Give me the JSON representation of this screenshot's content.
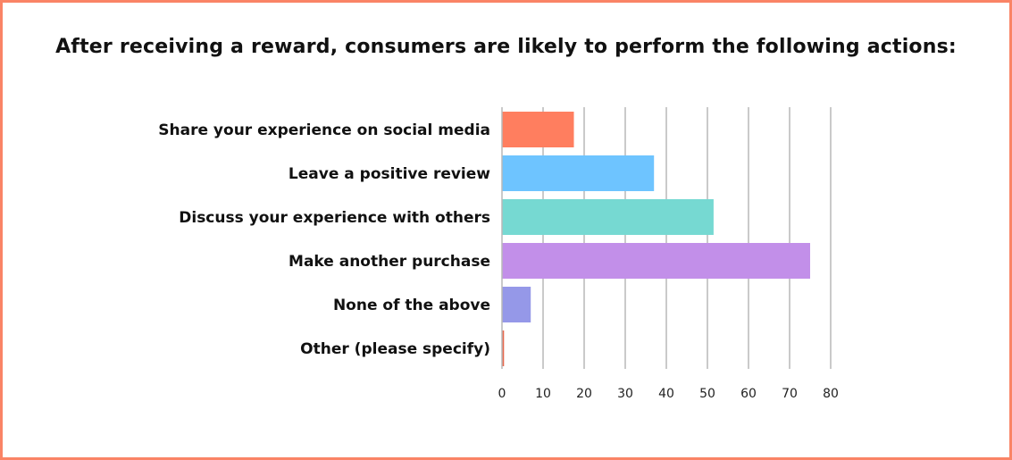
{
  "chart_data": {
    "type": "bar",
    "orientation": "horizontal",
    "title": "After receiving a reward, consumers are likely to perform the following actions:",
    "categories": [
      "Share your experience on social media",
      "Leave a positive review",
      "Discuss your experience with others",
      "Make another purchase",
      "None of the above",
      "Other (please specify)"
    ],
    "values": [
      17.5,
      37,
      51.5,
      75,
      7,
      0.5
    ],
    "colors": [
      "#ff7e5f",
      "#6ec4ff",
      "#76d9d2",
      "#c28fe9",
      "#9598e8",
      "#e8694e"
    ],
    "xlim": [
      0,
      80
    ],
    "xticks": [
      "0",
      "10",
      "20",
      "30",
      "40",
      "50",
      "60",
      "70",
      "80"
    ],
    "xlabel": "",
    "ylabel": "",
    "grid": true,
    "legend": "none"
  }
}
